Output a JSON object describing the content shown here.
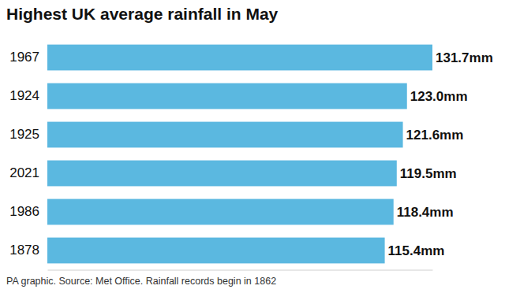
{
  "chart_data": {
    "type": "bar",
    "orientation": "horizontal",
    "title": "Highest UK average rainfall in May",
    "categories": [
      "1967",
      "1924",
      "1925",
      "2021",
      "1986",
      "1878"
    ],
    "values": [
      131.7,
      123.0,
      121.6,
      119.5,
      118.4,
      115.4
    ],
    "value_labels": [
      "131.7mm",
      "123.0mm",
      "121.6mm",
      "119.5mm",
      "118.4mm",
      "115.4mm"
    ],
    "data_labels": true,
    "color": "#5bb8e0",
    "xlim": [
      0,
      131.7
    ],
    "grid": false,
    "tick_labels": "y",
    "annotations": [
      "PA graphic. Source: Met Office. Rainfall records begin in 1862"
    ]
  }
}
